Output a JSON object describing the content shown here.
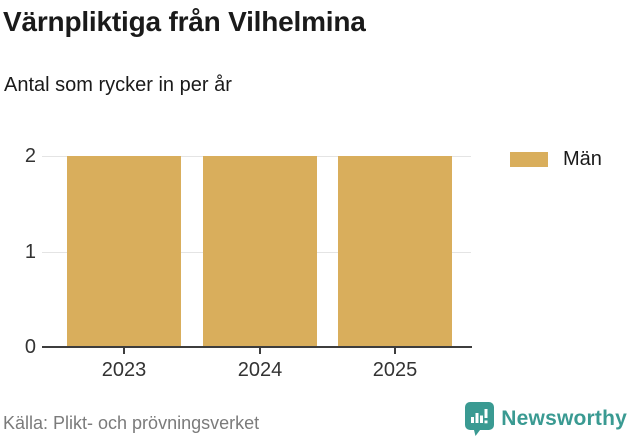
{
  "header": {
    "title": "Värnpliktiga från Vilhelmina",
    "subtitle": "Antal som rycker in per år"
  },
  "legend": {
    "items": [
      {
        "label": "Män",
        "color": "#d9ae5c"
      }
    ]
  },
  "footer": {
    "source": "Källa: Plikt- och prövningsverket",
    "brand": "Newsworthy"
  },
  "colors": {
    "bar": "#d9ae5c",
    "brand_teal": "#3a9a92",
    "gridline": "#e4e4e4",
    "axis": "#3d3d3d",
    "tick_text": "#333333",
    "source_text": "#7b7b7b"
  },
  "chart_data": {
    "type": "bar",
    "categories": [
      "2023",
      "2024",
      "2025"
    ],
    "series": [
      {
        "name": "Män",
        "values": [
          2,
          2,
          2
        ]
      }
    ],
    "title": "Värnpliktiga från Vilhelmina",
    "subtitle": "Antal som rycker in per år",
    "xlabel": "",
    "ylabel": "",
    "ylim": [
      0,
      2
    ],
    "yticks": [
      0,
      1,
      2
    ],
    "grid": true,
    "legend_position": "right-top",
    "bar_color": "#d9ae5c",
    "source": "Källa: Plikt- och prövningsverket"
  }
}
